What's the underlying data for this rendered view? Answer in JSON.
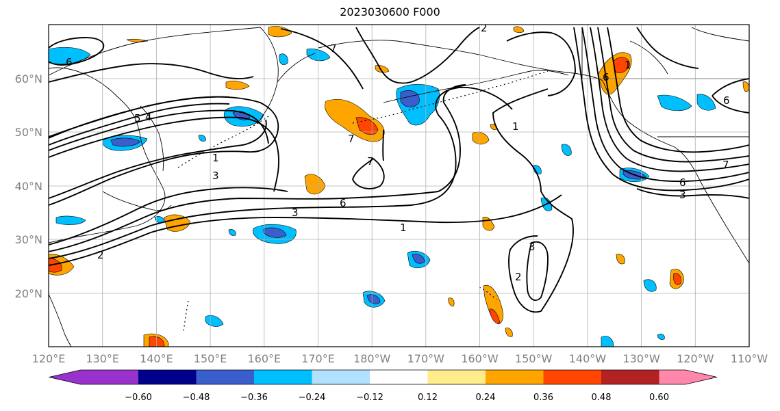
{
  "title": "2023030600 F000",
  "lat_labels": [
    "20°N",
    "30°N",
    "40°N",
    "50°N",
    "60°N"
  ],
  "lon_labels": [
    "120°E",
    "130°E",
    "140°E",
    "150°E",
    "160°E",
    "170°E",
    "180°W",
    "170°W",
    "160°W",
    "150°W",
    "140°W",
    "130°W",
    "120°W",
    "110°W"
  ],
  "colorbar": {
    "ticks": [
      "−0.60",
      "−0.48",
      "−0.36",
      "−0.24",
      "−0.12",
      "0.12",
      "0.24",
      "0.36",
      "0.48",
      "0.60"
    ],
    "colors": [
      "#9932cc",
      "#00008b",
      "#3a5fcd",
      "#00bfff",
      "#b0e2ff",
      "#ffffff",
      "#ffec8b",
      "#ffa500",
      "#ff4500",
      "#b22222",
      "#ff88aa"
    ]
  },
  "contour_labels": [
    "6",
    "2",
    "7",
    "5",
    "4",
    "1",
    "3",
    "7",
    "1",
    "7",
    "6",
    "3",
    "1",
    "3",
    "2",
    "2",
    "1",
    "6",
    "7",
    "6",
    "3",
    "6"
  ]
}
